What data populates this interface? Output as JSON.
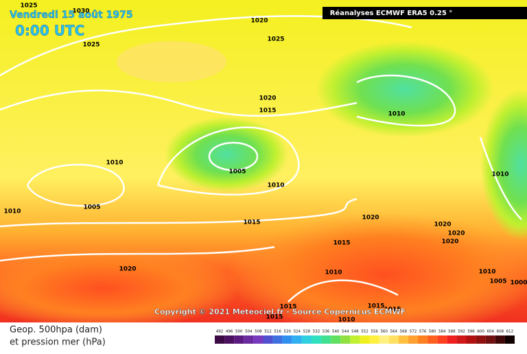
{
  "header": {
    "date": "Vendredi 15 août 1975",
    "time": "0:00 UTC",
    "source": "Réanalyses ECMWF ERA5 0.25 °"
  },
  "isobar_labels": [
    1025,
    1030,
    1020,
    1025,
    1025,
    1020,
    1015,
    1010,
    1010,
    1005,
    1010,
    1005,
    1010,
    1010,
    1015,
    1020,
    1020,
    1020,
    1020,
    1015,
    1020,
    1010,
    1010,
    1005,
    1000,
    1015,
    1015,
    1015,
    1015,
    1010
  ],
  "copyright": "Copyright © 2021 Meteociel.fr - Source Copernicus ECMWF",
  "legend": {
    "line1": "Geop. 500hpa (dam)",
    "line2": "et pression mer (hPa)"
  },
  "scale": {
    "values": [
      492,
      496,
      500,
      504,
      508,
      512,
      516,
      520,
      524,
      528,
      532,
      536,
      540,
      544,
      548,
      552,
      556,
      560,
      564,
      568,
      572,
      576,
      580,
      584,
      588,
      592,
      596,
      600,
      604,
      608,
      612
    ],
    "colors": [
      "#3b0a45",
      "#4b1060",
      "#5a1a80",
      "#6a2aa0",
      "#7a3ac0",
      "#5050d0",
      "#4070e0",
      "#3090f0",
      "#30b0f0",
      "#30d0e0",
      "#30e0c0",
      "#40e090",
      "#60e060",
      "#90e040",
      "#c0f030",
      "#f0f020",
      "#fff040",
      "#fff080",
      "#ffe060",
      "#ffc040",
      "#ffa030",
      "#ff8020",
      "#ff6020",
      "#ff4020",
      "#f02020",
      "#d01818",
      "#b01010",
      "#901010",
      "#701010",
      "#400808",
      "#100000"
    ]
  }
}
